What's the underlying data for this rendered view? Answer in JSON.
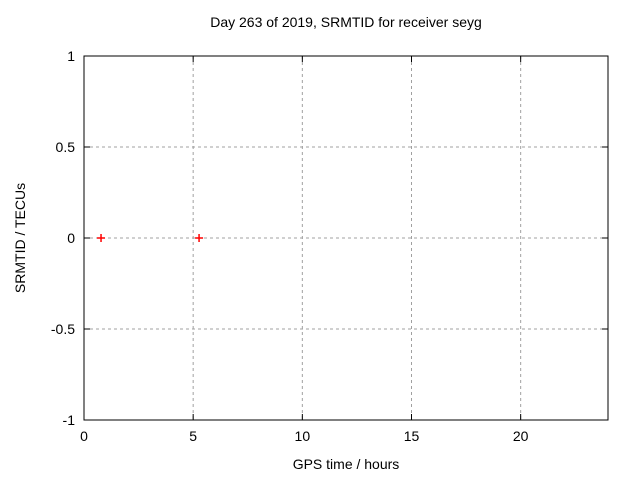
{
  "chart_data": {
    "type": "scatter",
    "title": "Day 263 of 2019, SRMTID for receiver seyg",
    "xlabel": "GPS time / hours",
    "ylabel": "SRMTID / TECUs",
    "xlim": [
      0,
      24
    ],
    "ylim": [
      -1,
      1
    ],
    "xticks": [
      0,
      5,
      10,
      15,
      20
    ],
    "yticks": [
      -1,
      -0.5,
      0,
      0.5,
      1
    ],
    "grid": true,
    "legend": "none",
    "series": [
      {
        "marker": "plus",
        "color": "#ff0000",
        "points": [
          [
            0.78,
            0.0
          ],
          [
            5.27,
            0.0
          ]
        ]
      }
    ]
  },
  "colors": {
    "background": "#ffffff",
    "axis": "#000000",
    "grid": "#a0a0a0",
    "text": "#000000",
    "marker": "#ff0000"
  }
}
